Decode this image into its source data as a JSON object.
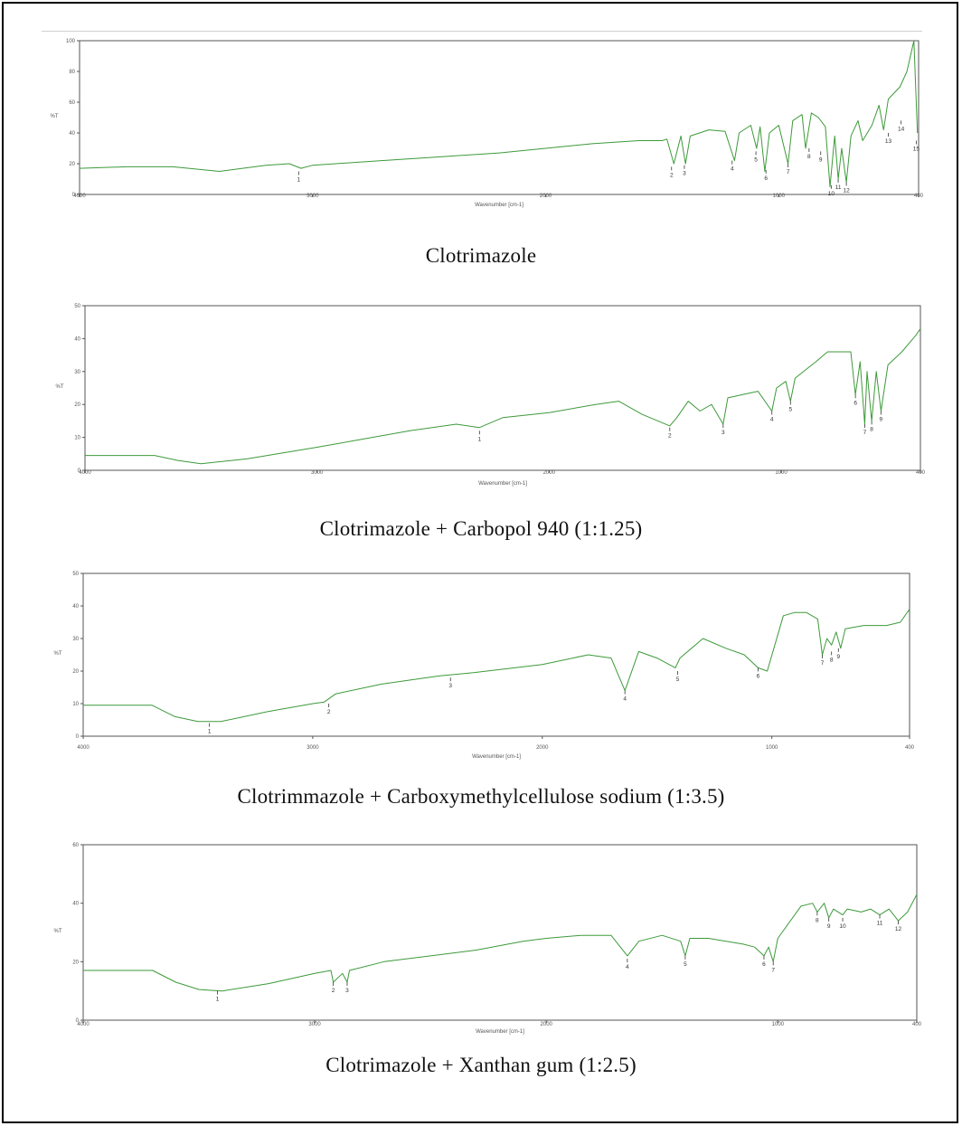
{
  "colors": {
    "trace": "#3d9a3a",
    "axis": "#555555",
    "text": "#111111"
  },
  "chart_data": [
    {
      "type": "line",
      "caption": "Clotrimazole",
      "xlabel": "Wavenumber [cm-1]",
      "ylabel": "%T",
      "xlim": [
        4000,
        400
      ],
      "ylim": [
        0,
        100
      ],
      "x_ticks": [
        "4000",
        "3000",
        "2000",
        "1000",
        "400"
      ],
      "y_ticks": [
        "0",
        "20",
        "40",
        "60",
        "80",
        "100"
      ],
      "trace": [
        [
          4000,
          17
        ],
        [
          3800,
          18
        ],
        [
          3600,
          18
        ],
        [
          3400,
          15
        ],
        [
          3200,
          19
        ],
        [
          3100,
          20
        ],
        [
          3050,
          17
        ],
        [
          3000,
          19
        ],
        [
          2800,
          21
        ],
        [
          2600,
          23
        ],
        [
          2400,
          25
        ],
        [
          2200,
          27
        ],
        [
          2000,
          30
        ],
        [
          1800,
          33
        ],
        [
          1600,
          35
        ],
        [
          1500,
          35
        ],
        [
          1480,
          36
        ],
        [
          1450,
          20
        ],
        [
          1420,
          38
        ],
        [
          1400,
          20
        ],
        [
          1380,
          38
        ],
        [
          1300,
          42
        ],
        [
          1230,
          41
        ],
        [
          1190,
          22
        ],
        [
          1170,
          40
        ],
        [
          1120,
          45
        ],
        [
          1095,
          30
        ],
        [
          1080,
          44
        ],
        [
          1060,
          15
        ],
        [
          1040,
          40
        ],
        [
          1000,
          45
        ],
        [
          960,
          20
        ],
        [
          940,
          48
        ],
        [
          900,
          52
        ],
        [
          885,
          30
        ],
        [
          860,
          53
        ],
        [
          830,
          50
        ],
        [
          800,
          44
        ],
        [
          780,
          5
        ],
        [
          760,
          38
        ],
        [
          745,
          10
        ],
        [
          730,
          30
        ],
        [
          710,
          8
        ],
        [
          690,
          38
        ],
        [
          660,
          48
        ],
        [
          640,
          35
        ],
        [
          600,
          45
        ],
        [
          570,
          58
        ],
        [
          550,
          42
        ],
        [
          530,
          62
        ],
        [
          480,
          70
        ],
        [
          450,
          80
        ],
        [
          420,
          100
        ],
        [
          405,
          40
        ]
      ],
      "peaks": [
        {
          "label": "1",
          "x": 3060,
          "y": 15
        },
        {
          "label": "2",
          "x": 1460,
          "y": 18
        },
        {
          "label": "3",
          "x": 1405,
          "y": 19
        },
        {
          "label": "4",
          "x": 1200,
          "y": 22
        },
        {
          "label": "5",
          "x": 1098,
          "y": 28
        },
        {
          "label": "6",
          "x": 1055,
          "y": 16
        },
        {
          "label": "7",
          "x": 960,
          "y": 20
        },
        {
          "label": "8",
          "x": 870,
          "y": 30
        },
        {
          "label": "9",
          "x": 820,
          "y": 28
        },
        {
          "label": "10",
          "x": 775,
          "y": 6
        },
        {
          "label": "11",
          "x": 745,
          "y": 10
        },
        {
          "label": "12",
          "x": 710,
          "y": 8
        },
        {
          "label": "13",
          "x": 530,
          "y": 40
        },
        {
          "label": "14",
          "x": 475,
          "y": 48
        },
        {
          "label": "15",
          "x": 410,
          "y": 35
        }
      ]
    },
    {
      "type": "line",
      "caption": "Clotrimazole + Carbopol 940 (1:1.25)",
      "xlabel": "Wavenumber [cm-1]",
      "ylabel": "%T",
      "xlim": [
        4000,
        400
      ],
      "ylim": [
        0,
        50
      ],
      "x_ticks": [
        "4000",
        "3000",
        "2000",
        "1000",
        "400"
      ],
      "y_ticks": [
        "0",
        "10",
        "20",
        "30",
        "40",
        "50"
      ],
      "trace": [
        [
          4000,
          4.5
        ],
        [
          3700,
          4.5
        ],
        [
          3600,
          3
        ],
        [
          3500,
          2
        ],
        [
          3300,
          3.5
        ],
        [
          3000,
          7
        ],
        [
          2800,
          9.5
        ],
        [
          2600,
          12
        ],
        [
          2400,
          14
        ],
        [
          2300,
          13
        ],
        [
          2200,
          16
        ],
        [
          2000,
          17.5
        ],
        [
          1800,
          20
        ],
        [
          1700,
          21
        ],
        [
          1600,
          17
        ],
        [
          1480,
          13.5
        ],
        [
          1450,
          16
        ],
        [
          1400,
          21
        ],
        [
          1350,
          18
        ],
        [
          1300,
          20
        ],
        [
          1250,
          14
        ],
        [
          1230,
          22
        ],
        [
          1100,
          24
        ],
        [
          1040,
          18
        ],
        [
          1020,
          25
        ],
        [
          980,
          27
        ],
        [
          960,
          21
        ],
        [
          940,
          28
        ],
        [
          850,
          33
        ],
        [
          800,
          36
        ],
        [
          700,
          36
        ],
        [
          680,
          23
        ],
        [
          660,
          33
        ],
        [
          640,
          14
        ],
        [
          630,
          30
        ],
        [
          610,
          15
        ],
        [
          590,
          30
        ],
        [
          570,
          18
        ],
        [
          540,
          32
        ],
        [
          480,
          36
        ],
        [
          420,
          41
        ],
        [
          400,
          43
        ]
      ],
      "peaks": [
        {
          "label": "1",
          "x": 2300,
          "y": 12
        },
        {
          "label": "2",
          "x": 1480,
          "y": 13
        },
        {
          "label": "3",
          "x": 1250,
          "y": 14
        },
        {
          "label": "4",
          "x": 1040,
          "y": 18
        },
        {
          "label": "5",
          "x": 960,
          "y": 21
        },
        {
          "label": "6",
          "x": 680,
          "y": 23
        },
        {
          "label": "7",
          "x": 640,
          "y": 14
        },
        {
          "label": "8",
          "x": 610,
          "y": 15
        },
        {
          "label": "9",
          "x": 570,
          "y": 18
        }
      ]
    },
    {
      "type": "line",
      "caption": "Clotrimmazole + Carboxymethylcellulose sodium (1:3.5)",
      "xlabel": "Wavenumber [cm-1]",
      "ylabel": "%T",
      "xlim": [
        4000,
        400
      ],
      "ylim": [
        0,
        50
      ],
      "x_ticks": [
        "4000",
        "3000",
        "2000",
        "1000",
        "400"
      ],
      "y_ticks": [
        "0",
        "10",
        "20",
        "30",
        "40",
        "50"
      ],
      "trace": [
        [
          4000,
          9.5
        ],
        [
          3700,
          9.5
        ],
        [
          3600,
          6
        ],
        [
          3500,
          4.5
        ],
        [
          3400,
          4.5
        ],
        [
          3200,
          7.5
        ],
        [
          3000,
          10
        ],
        [
          2950,
          10.5
        ],
        [
          2900,
          13
        ],
        [
          2700,
          16
        ],
        [
          2450,
          18.5
        ],
        [
          2300,
          19.5
        ],
        [
          2000,
          22
        ],
        [
          1800,
          25
        ],
        [
          1700,
          24
        ],
        [
          1640,
          14
        ],
        [
          1580,
          26
        ],
        [
          1500,
          24
        ],
        [
          1420,
          21
        ],
        [
          1400,
          24
        ],
        [
          1300,
          30
        ],
        [
          1200,
          27
        ],
        [
          1120,
          25
        ],
        [
          1060,
          21
        ],
        [
          1020,
          20
        ],
        [
          950,
          37
        ],
        [
          900,
          38
        ],
        [
          850,
          38
        ],
        [
          800,
          36
        ],
        [
          780,
          25
        ],
        [
          760,
          30
        ],
        [
          740,
          28
        ],
        [
          720,
          32
        ],
        [
          700,
          27
        ],
        [
          680,
          33
        ],
        [
          600,
          34
        ],
        [
          500,
          34
        ],
        [
          440,
          35
        ],
        [
          400,
          39
        ]
      ],
      "peaks": [
        {
          "label": "1",
          "x": 3450,
          "y": 4
        },
        {
          "label": "2",
          "x": 2930,
          "y": 10
        },
        {
          "label": "3",
          "x": 2400,
          "y": 18
        },
        {
          "label": "4",
          "x": 1640,
          "y": 14
        },
        {
          "label": "5",
          "x": 1410,
          "y": 20
        },
        {
          "label": "6",
          "x": 1060,
          "y": 21
        },
        {
          "label": "7",
          "x": 780,
          "y": 25
        },
        {
          "label": "8",
          "x": 740,
          "y": 26
        },
        {
          "label": "9",
          "x": 710,
          "y": 27
        }
      ]
    },
    {
      "type": "line",
      "caption": "Clotrimazole + Xanthan gum (1:2.5)",
      "xlabel": "Wavenumber [cm-1]",
      "ylabel": "%T",
      "xlim": [
        4000,
        400
      ],
      "ylim": [
        0,
        60
      ],
      "x_ticks": [
        "4000",
        "3000",
        "2000",
        "1000",
        "400"
      ],
      "y_ticks": [
        "0",
        "20",
        "40",
        "60"
      ],
      "trace": [
        [
          4000,
          17
        ],
        [
          3700,
          17
        ],
        [
          3600,
          13
        ],
        [
          3500,
          10.5
        ],
        [
          3400,
          10
        ],
        [
          3200,
          12.5
        ],
        [
          3000,
          16
        ],
        [
          2930,
          17
        ],
        [
          2920,
          13
        ],
        [
          2880,
          16
        ],
        [
          2860,
          13
        ],
        [
          2850,
          17
        ],
        [
          2700,
          20
        ],
        [
          2500,
          22
        ],
        [
          2300,
          24
        ],
        [
          2100,
          27
        ],
        [
          2000,
          28
        ],
        [
          1850,
          29
        ],
        [
          1720,
          29
        ],
        [
          1650,
          22
        ],
        [
          1600,
          27
        ],
        [
          1500,
          29
        ],
        [
          1420,
          27
        ],
        [
          1400,
          22
        ],
        [
          1380,
          28
        ],
        [
          1300,
          28
        ],
        [
          1150,
          26
        ],
        [
          1100,
          25
        ],
        [
          1060,
          22
        ],
        [
          1040,
          25
        ],
        [
          1020,
          20
        ],
        [
          1000,
          28
        ],
        [
          900,
          39
        ],
        [
          850,
          40
        ],
        [
          830,
          37
        ],
        [
          800,
          40
        ],
        [
          780,
          35
        ],
        [
          760,
          38
        ],
        [
          720,
          36
        ],
        [
          700,
          38
        ],
        [
          640,
          37
        ],
        [
          600,
          38
        ],
        [
          560,
          36
        ],
        [
          520,
          38
        ],
        [
          480,
          34
        ],
        [
          440,
          37
        ],
        [
          400,
          43
        ]
      ],
      "peaks": [
        {
          "label": "1",
          "x": 3420,
          "y": 10
        },
        {
          "label": "2",
          "x": 2920,
          "y": 13
        },
        {
          "label": "3",
          "x": 2860,
          "y": 13
        },
        {
          "label": "4",
          "x": 1650,
          "y": 21
        },
        {
          "label": "5",
          "x": 1400,
          "y": 22
        },
        {
          "label": "6",
          "x": 1060,
          "y": 22
        },
        {
          "label": "7",
          "x": 1020,
          "y": 20
        },
        {
          "label": "8",
          "x": 830,
          "y": 37
        },
        {
          "label": "9",
          "x": 780,
          "y": 35
        },
        {
          "label": "10",
          "x": 720,
          "y": 35
        },
        {
          "label": "11",
          "x": 560,
          "y": 36
        },
        {
          "label": "12",
          "x": 480,
          "y": 34
        }
      ]
    }
  ]
}
